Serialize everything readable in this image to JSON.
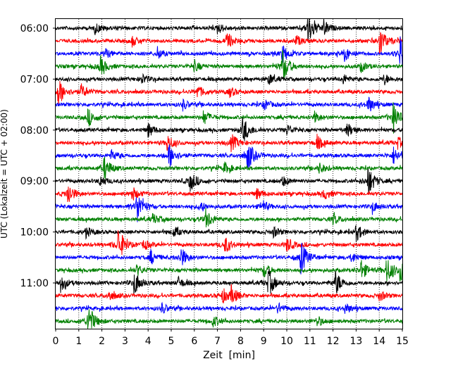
{
  "chart_data": {
    "type": "line",
    "title": "",
    "xlabel": "Zeit  [min]",
    "ylabel": "UTC (Lokalzeit = UTC + 02:00)",
    "xlim": [
      0,
      15
    ],
    "x_ticks": [
      "0",
      "1",
      "2",
      "3",
      "4",
      "5",
      "6",
      "7",
      "8",
      "9",
      "10",
      "11",
      "12",
      "13",
      "14",
      "15"
    ],
    "y_tick_labels": [
      "06:00",
      "07:00",
      "08:00",
      "09:00",
      "10:00",
      "11:00"
    ],
    "grid": "vertical dotted lines at each minute",
    "trace_interval_minutes": 15,
    "start_time_utc": "06:00",
    "color_cycle": [
      "#000000",
      "#ff0000",
      "#0000ff",
      "#008000"
    ],
    "traces": [
      {
        "time": "06:00",
        "color": "#000000",
        "events": [
          [
            10.9,
            1.0
          ],
          [
            11.6,
            0.4
          ],
          [
            1.7,
            0.3
          ],
          [
            7.0,
            0.3
          ]
        ]
      },
      {
        "time": "06:15",
        "color": "#ff0000",
        "events": [
          [
            14.0,
            0.9
          ],
          [
            7.4,
            0.5
          ],
          [
            3.3,
            0.3
          ],
          [
            10.4,
            0.3
          ]
        ]
      },
      {
        "time": "06:30",
        "color": "#0000ff",
        "events": [
          [
            14.9,
            1.0
          ],
          [
            9.8,
            0.5
          ],
          [
            12.5,
            0.4
          ],
          [
            4.4,
            0.3
          ],
          [
            2.1,
            0.3
          ]
        ]
      },
      {
        "time": "06:45",
        "color": "#008000",
        "events": [
          [
            9.8,
            1.0
          ],
          [
            1.9,
            0.6
          ],
          [
            13.2,
            0.3
          ],
          [
            6.0,
            0.3
          ]
        ]
      },
      {
        "time": "07:00",
        "color": "#000000",
        "events": [
          [
            12.4,
            0.3
          ],
          [
            3.7,
            0.3
          ],
          [
            9.2,
            0.3
          ],
          [
            14.2,
            0.3
          ]
        ]
      },
      {
        "time": "07:15",
        "color": "#ff0000",
        "events": [
          [
            0.1,
            0.8
          ],
          [
            6.1,
            0.4
          ],
          [
            1.1,
            0.4
          ],
          [
            7.5,
            0.3
          ]
        ]
      },
      {
        "time": "07:30",
        "color": "#0000ff",
        "events": [
          [
            13.5,
            0.5
          ],
          [
            5.5,
            0.3
          ],
          [
            9.0,
            0.3
          ]
        ]
      },
      {
        "time": "07:45",
        "color": "#008000",
        "events": [
          [
            14.6,
            0.9
          ],
          [
            1.4,
            0.5
          ],
          [
            6.4,
            0.4
          ],
          [
            11.2,
            0.3
          ]
        ]
      },
      {
        "time": "08:00",
        "color": "#000000",
        "events": [
          [
            8.1,
            0.8
          ],
          [
            4.0,
            0.4
          ],
          [
            12.6,
            0.4
          ],
          [
            10.0,
            0.3
          ]
        ]
      },
      {
        "time": "08:15",
        "color": "#ff0000",
        "events": [
          [
            7.6,
            0.5
          ],
          [
            4.8,
            0.5
          ],
          [
            11.3,
            0.4
          ],
          [
            14.8,
            0.3
          ]
        ]
      },
      {
        "time": "08:30",
        "color": "#0000ff",
        "events": [
          [
            8.3,
            0.9
          ],
          [
            4.9,
            0.7
          ],
          [
            14.6,
            0.5
          ],
          [
            2.4,
            0.3
          ]
        ]
      },
      {
        "time": "08:45",
        "color": "#008000",
        "events": [
          [
            2.1,
            0.7
          ],
          [
            7.3,
            0.3
          ],
          [
            11.4,
            0.3
          ]
        ]
      },
      {
        "time": "09:00",
        "color": "#000000",
        "events": [
          [
            13.5,
            0.9
          ],
          [
            5.8,
            0.6
          ],
          [
            1.9,
            0.3
          ],
          [
            9.8,
            0.3
          ]
        ]
      },
      {
        "time": "09:15",
        "color": "#ff0000",
        "events": [
          [
            0.5,
            0.7
          ],
          [
            3.3,
            0.4
          ],
          [
            8.7,
            0.3
          ],
          [
            11.6,
            0.3
          ]
        ]
      },
      {
        "time": "09:30",
        "color": "#0000ff",
        "events": [
          [
            3.5,
            1.0
          ],
          [
            8.9,
            0.4
          ],
          [
            13.7,
            0.3
          ],
          [
            6.2,
            0.3
          ]
        ]
      },
      {
        "time": "09:45",
        "color": "#008000",
        "events": [
          [
            6.5,
            0.6
          ],
          [
            4.2,
            0.3
          ],
          [
            12.0,
            0.3
          ]
        ]
      },
      {
        "time": "10:00",
        "color": "#000000",
        "events": [
          [
            13.0,
            0.5
          ],
          [
            5.1,
            0.3
          ],
          [
            1.3,
            0.3
          ],
          [
            9.4,
            0.3
          ]
        ]
      },
      {
        "time": "10:15",
        "color": "#ff0000",
        "events": [
          [
            2.7,
            1.0
          ],
          [
            7.3,
            0.5
          ],
          [
            10.0,
            0.4
          ],
          [
            3.8,
            0.3
          ]
        ]
      },
      {
        "time": "10:30",
        "color": "#0000ff",
        "events": [
          [
            10.6,
            1.0
          ],
          [
            5.4,
            0.6
          ],
          [
            4.1,
            0.4
          ],
          [
            12.8,
            0.3
          ]
        ]
      },
      {
        "time": "10:45",
        "color": "#008000",
        "events": [
          [
            14.3,
            0.8
          ],
          [
            13.2,
            0.6
          ],
          [
            9.0,
            0.4
          ],
          [
            14.9,
            0.6
          ],
          [
            3.5,
            0.3
          ]
        ]
      },
      {
        "time": "11:00",
        "color": "#000000",
        "events": [
          [
            9.2,
            0.8
          ],
          [
            12.1,
            0.7
          ],
          [
            0.2,
            0.5
          ],
          [
            3.4,
            0.7
          ],
          [
            5.3,
            0.3
          ]
        ]
      },
      {
        "time": "11:15",
        "color": "#ff0000",
        "events": [
          [
            7.6,
            0.5
          ],
          [
            7.2,
            0.4
          ],
          [
            2.3,
            0.3
          ],
          [
            14.0,
            0.3
          ]
        ]
      },
      {
        "time": "11:30",
        "color": "#0000ff",
        "events": [
          [
            12.5,
            0.3
          ],
          [
            4.6,
            0.3
          ],
          [
            9.6,
            0.3
          ]
        ]
      },
      {
        "time": "11:45",
        "color": "#008000",
        "events": [
          [
            1.4,
            1.0
          ],
          [
            11.3,
            0.3
          ],
          [
            6.8,
            0.3
          ]
        ]
      }
    ]
  }
}
